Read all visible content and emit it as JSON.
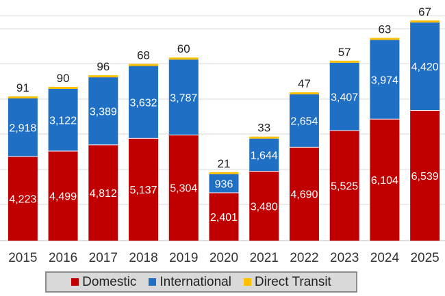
{
  "chart_data": {
    "type": "bar",
    "stacked": true,
    "categories": [
      "2015",
      "2016",
      "2017",
      "2018",
      "2019",
      "2020",
      "2021",
      "2022",
      "2023",
      "2024",
      "2025"
    ],
    "series": [
      {
        "name": "Domestic",
        "color": "#c00000",
        "values": [
          4223,
          4499,
          4812,
          5137,
          5304,
          2401,
          3480,
          4690,
          5525,
          6104,
          6539
        ],
        "labels": [
          "4,223",
          "4,499",
          "4,812",
          "5,137",
          "5,304",
          "2,401",
          "3,480",
          "4,690",
          "5,525",
          "6,104",
          "6,539"
        ]
      },
      {
        "name": "International",
        "color": "#1f6fc5",
        "values": [
          2918,
          3122,
          3389,
          3632,
          3787,
          936,
          1644,
          2654,
          3407,
          3974,
          4420
        ],
        "labels": [
          "2,918",
          "3,122",
          "3,389",
          "3,632",
          "3,787",
          "936",
          "1,644",
          "2,654",
          "3,407",
          "3,974",
          "4,420"
        ]
      },
      {
        "name": "Direct Transit",
        "color": "#ffc000",
        "values": [
          91,
          90,
          96,
          68,
          60,
          21,
          33,
          47,
          57,
          63,
          67
        ],
        "labels": [
          "91",
          "90",
          "96",
          "68",
          "60",
          "21",
          "33",
          "47",
          "57",
          "63",
          "67"
        ]
      }
    ],
    "ylim": [
      0,
      11500
    ],
    "grid": true,
    "legend_position": "bottom"
  }
}
